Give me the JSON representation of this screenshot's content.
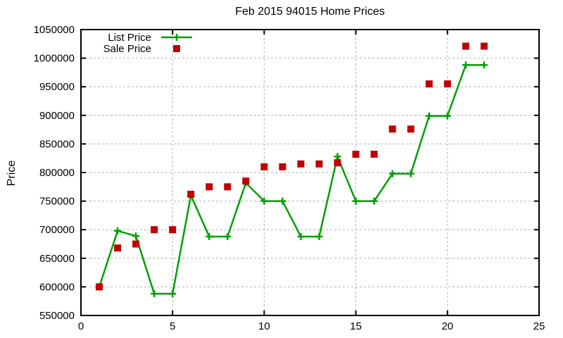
{
  "chart_data": {
    "type": "line",
    "title": "Feb 2015 94015 Home Prices",
    "xlabel": "",
    "ylabel": "Price",
    "xlim": [
      0,
      25
    ],
    "ylim": [
      550000,
      1050000
    ],
    "xticks": [
      0,
      5,
      10,
      15,
      20,
      25
    ],
    "yticks": [
      550000,
      600000,
      650000,
      700000,
      750000,
      800000,
      850000,
      900000,
      950000,
      1000000,
      1050000
    ],
    "grid": true,
    "legend_position": "inside top-left",
    "x": [
      1,
      2,
      3,
      4,
      5,
      6,
      7,
      8,
      9,
      10,
      11,
      12,
      13,
      14,
      15,
      16,
      17,
      18,
      19,
      20,
      21,
      22
    ],
    "series": [
      {
        "name": "List Price",
        "marker": "plus",
        "draw": "line+marker",
        "color": "#00a000",
        "values": [
          600000,
          698000,
          689000,
          588000,
          588000,
          760000,
          688000,
          688000,
          782000,
          750000,
          750000,
          688000,
          688000,
          828000,
          750000,
          750000,
          798000,
          798000,
          899000,
          899000,
          988000,
          988000
        ]
      },
      {
        "name": "Sale Price",
        "marker": "square",
        "draw": "marker",
        "color": "#c00000",
        "values": [
          600000,
          668000,
          675000,
          700000,
          700000,
          762000,
          775000,
          775000,
          785000,
          810000,
          810000,
          815000,
          815000,
          817000,
          832000,
          832000,
          876000,
          876000,
          955000,
          955000,
          1021000,
          1021000
        ]
      }
    ]
  },
  "colors": {
    "background": "#ffffff",
    "axis": "#000000",
    "grid": "#b0b0b0",
    "list_price": "#00a000",
    "sale_price": "#c00000"
  }
}
